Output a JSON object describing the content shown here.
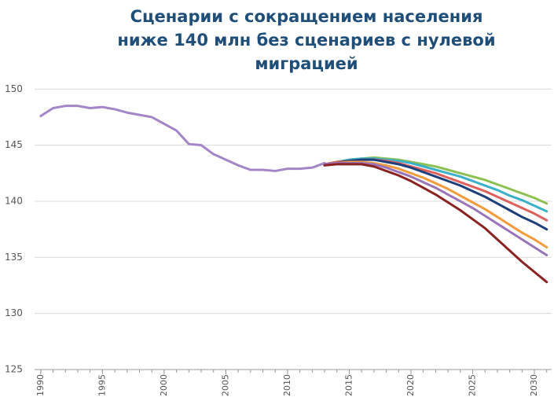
{
  "chart_data": {
    "type": "line",
    "title": [
      "Сценарии с сокращением населения",
      "ниже 140 млн без сценариев с нулевой",
      "миграцией"
    ],
    "x": [
      1990,
      1991,
      1992,
      1993,
      1994,
      1995,
      1996,
      1997,
      1998,
      1999,
      2000,
      2001,
      2002,
      2003,
      2004,
      2005,
      2006,
      2007,
      2008,
      2009,
      2010,
      2011,
      2012,
      2013,
      2014,
      2015,
      2016,
      2017,
      2018,
      2019,
      2020,
      2021,
      2022,
      2023,
      2024,
      2025,
      2026,
      2027,
      2028,
      2029,
      2030,
      2031
    ],
    "series": [
      {
        "color": "#a486c8",
        "values": [
          147.6,
          148.3,
          148.5,
          148.5,
          148.3,
          148.4,
          148.2,
          147.9,
          147.7,
          147.5,
          146.9,
          146.3,
          145.1,
          145.0,
          144.2,
          143.7,
          143.2,
          142.8,
          142.8,
          142.7,
          142.9,
          142.9,
          143.0,
          143.4,
          null,
          null,
          null,
          null,
          null,
          null,
          null,
          null,
          null,
          null,
          null,
          null,
          null,
          null,
          null,
          null,
          null,
          null
        ]
      },
      {
        "color": "#8cc152",
        "values": [
          null,
          null,
          null,
          null,
          null,
          null,
          null,
          null,
          null,
          null,
          null,
          null,
          null,
          null,
          null,
          null,
          null,
          null,
          null,
          null,
          null,
          null,
          null,
          143.3,
          143.5,
          143.7,
          143.8,
          143.9,
          143.8,
          143.7,
          143.5,
          143.3,
          143.1,
          142.8,
          142.5,
          142.2,
          141.9,
          141.5,
          141.1,
          140.7,
          140.3,
          139.8
        ]
      },
      {
        "color": "#3bb0c9",
        "values": [
          null,
          null,
          null,
          null,
          null,
          null,
          null,
          null,
          null,
          null,
          null,
          null,
          null,
          null,
          null,
          null,
          null,
          null,
          null,
          null,
          null,
          null,
          null,
          143.3,
          143.5,
          143.7,
          143.8,
          143.8,
          143.7,
          143.6,
          143.4,
          143.1,
          142.8,
          142.5,
          142.2,
          141.8,
          141.4,
          141.0,
          140.5,
          140.1,
          139.6,
          139.1
        ]
      },
      {
        "color": "#e0605c",
        "values": [
          null,
          null,
          null,
          null,
          null,
          null,
          null,
          null,
          null,
          null,
          null,
          null,
          null,
          null,
          null,
          null,
          null,
          null,
          null,
          null,
          null,
          null,
          null,
          143.3,
          143.5,
          143.6,
          143.7,
          143.7,
          143.6,
          143.4,
          143.1,
          142.8,
          142.5,
          142.1,
          141.7,
          141.3,
          140.9,
          140.4,
          139.9,
          139.4,
          138.9,
          138.3
        ]
      },
      {
        "color": "#1f3f7a",
        "values": [
          null,
          null,
          null,
          null,
          null,
          null,
          null,
          null,
          null,
          null,
          null,
          null,
          null,
          null,
          null,
          null,
          null,
          null,
          null,
          null,
          null,
          null,
          null,
          143.2,
          143.4,
          143.6,
          143.7,
          143.7,
          143.5,
          143.3,
          143.0,
          142.6,
          142.2,
          141.8,
          141.4,
          140.9,
          140.4,
          139.8,
          139.2,
          138.6,
          138.1,
          137.5
        ]
      },
      {
        "color": "#f39c3c",
        "values": [
          null,
          null,
          null,
          null,
          null,
          null,
          null,
          null,
          null,
          null,
          null,
          null,
          null,
          null,
          null,
          null,
          null,
          null,
          null,
          null,
          null,
          null,
          null,
          143.3,
          143.4,
          143.5,
          143.5,
          143.4,
          143.2,
          142.9,
          142.5,
          142.1,
          141.6,
          141.1,
          140.5,
          139.9,
          139.3,
          138.6,
          137.9,
          137.2,
          136.6,
          135.9
        ]
      },
      {
        "color": "#9a74b8",
        "values": [
          null,
          null,
          null,
          null,
          null,
          null,
          null,
          null,
          null,
          null,
          null,
          null,
          null,
          null,
          null,
          null,
          null,
          null,
          null,
          null,
          null,
          null,
          null,
          143.3,
          143.4,
          143.4,
          143.4,
          143.3,
          143.0,
          142.6,
          142.2,
          141.7,
          141.2,
          140.6,
          140.0,
          139.4,
          138.7,
          138.0,
          137.3,
          136.6,
          135.9,
          135.2
        ]
      },
      {
        "color": "#8b2323",
        "values": [
          null,
          null,
          null,
          null,
          null,
          null,
          null,
          null,
          null,
          null,
          null,
          null,
          null,
          null,
          null,
          null,
          null,
          null,
          null,
          null,
          null,
          null,
          null,
          143.2,
          143.3,
          143.3,
          143.3,
          143.1,
          142.7,
          142.3,
          141.8,
          141.2,
          140.6,
          139.9,
          139.2,
          138.4,
          137.6,
          136.6,
          135.6,
          134.6,
          133.7,
          132.8
        ]
      }
    ],
    "xlim": [
      1989.5,
      2031.4
    ],
    "xticks": [
      1990,
      1995,
      2000,
      2005,
      2010,
      2015,
      2020,
      2025,
      2030
    ],
    "ylim": [
      125,
      151
    ],
    "yticks": [
      125,
      130,
      135,
      140,
      145,
      150
    ],
    "grid": true
  }
}
